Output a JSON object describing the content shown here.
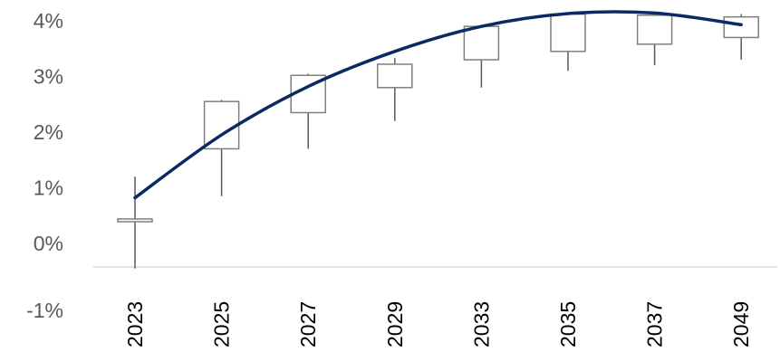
{
  "chart_data": {
    "type": "candlestick",
    "title": "",
    "xlabel": "",
    "ylabel": "",
    "ylim": [
      -1,
      4.2
    ],
    "y_ticks": [
      "4%",
      "3%",
      "2%",
      "1%",
      "0%",
      "-1%"
    ],
    "y_tick_values": [
      4,
      3,
      2,
      1,
      0,
      -1
    ],
    "categories": [
      "2023",
      "2025",
      "2027",
      "2029",
      "2033",
      "2035",
      "2037",
      "2049"
    ],
    "box_low": [
      0.39,
      1.7,
      2.35,
      2.8,
      3.3,
      3.45,
      3.58,
      3.7
    ],
    "box_high": [
      0.44,
      2.55,
      3.02,
      3.22,
      3.9,
      4.12,
      4.1,
      4.07
    ],
    "whisker_low": [
      -0.45,
      0.85,
      1.7,
      2.2,
      2.8,
      3.1,
      3.2,
      3.3
    ],
    "whisker_high": [
      1.2,
      2.58,
      3.05,
      3.33,
      3.92,
      4.15,
      4.13,
      4.12
    ],
    "trend_line": [
      0.82,
      1.95,
      2.82,
      3.45,
      3.9,
      4.13,
      4.14,
      3.93
    ],
    "colors": {
      "trend": "#0b2a63",
      "box_stroke": "#7f7f7f",
      "whisker": "#595959",
      "axis": "#d9d9d9"
    },
    "grid": false,
    "legend": "none"
  }
}
